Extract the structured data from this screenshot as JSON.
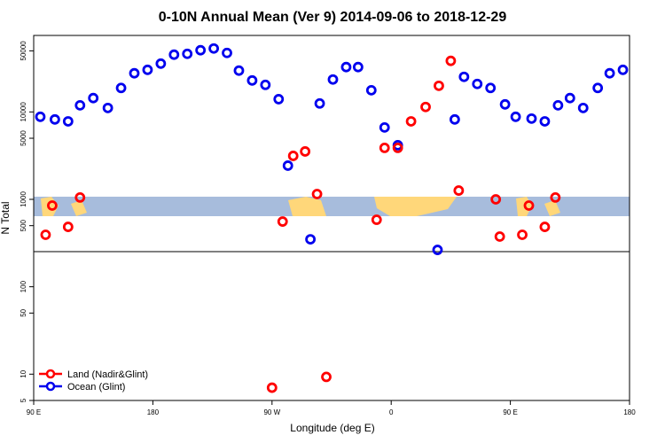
{
  "chart_data": {
    "type": "scatter",
    "title": "0-10N Annual Mean (Ver 9)   2014-09-06 to 2018-12-29",
    "x_label": "Longitude (deg E)",
    "y_label": "N Total",
    "xlim": [
      90,
      540
    ],
    "xticks": [
      {
        "value": 90,
        "label": "90 E"
      },
      {
        "value": 180,
        "label": "180"
      },
      {
        "value": 270,
        "label": "90 W"
      },
      {
        "value": 360,
        "label": "0"
      },
      {
        "value": 450,
        "label": "90 E"
      },
      {
        "value": 540,
        "label": "180"
      }
    ],
    "ylim": [
      5,
      75000
    ],
    "yticks": [
      5,
      10,
      50,
      100,
      500,
      1000,
      5000,
      10000,
      50000
    ],
    "y_scale": "log",
    "legend": "bottom-left",
    "series": [
      {
        "name": "Land (Nadir&Glint)",
        "color": "#ff0000",
        "x": [
          99,
          104,
          116,
          125,
          270,
          278,
          286,
          295,
          304,
          311,
          349,
          355,
          365,
          375,
          386,
          396,
          405,
          411,
          439,
          442,
          459,
          464,
          476,
          484
        ],
        "values": [
          393,
          849,
          484,
          1050,
          7.0,
          557,
          3140,
          3530,
          1150,
          9.3,
          584,
          3880,
          3880,
          7800,
          11400,
          19900,
          38400,
          1260,
          1000,
          375,
          393,
          849,
          484,
          1050
        ]
      },
      {
        "name": "Ocean (Glint)",
        "color": "#0000ee",
        "x": [
          95,
          106,
          116,
          125,
          135,
          146,
          156,
          166,
          176,
          186,
          196,
          206,
          216,
          226,
          236,
          245,
          255,
          265,
          275,
          282,
          299,
          306,
          316,
          326,
          335,
          345,
          355,
          365,
          395,
          408,
          415,
          425,
          435,
          446,
          454,
          466,
          476,
          486,
          495,
          505,
          516,
          525,
          535
        ],
        "values": [
          8800,
          8200,
          7800,
          11900,
          14400,
          11100,
          18800,
          27700,
          30300,
          35700,
          45200,
          46200,
          50800,
          53200,
          47300,
          29700,
          22900,
          20400,
          14000,
          2430,
          349,
          12500,
          23500,
          32600,
          32600,
          17700,
          6640,
          4160,
          264,
          8200,
          25200,
          20900,
          18800,
          12200,
          8800,
          8390,
          7800,
          11900,
          14400,
          11100,
          18800,
          27700,
          30300
        ]
      }
    ]
  }
}
